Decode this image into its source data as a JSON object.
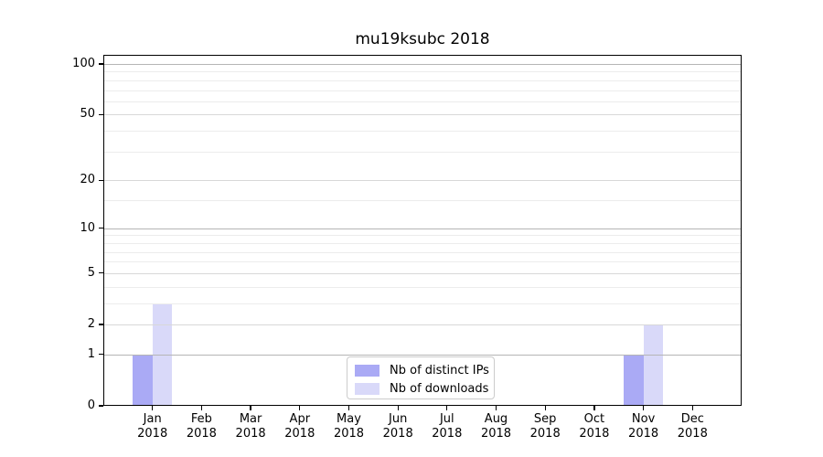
{
  "chart_data": {
    "type": "bar",
    "title": "mu19ksubc 2018",
    "categories": [
      "Jan",
      "Feb",
      "Mar",
      "Apr",
      "May",
      "Jun",
      "Jul",
      "Aug",
      "Sep",
      "Oct",
      "Nov",
      "Dec"
    ],
    "year_label": "2018",
    "series": [
      {
        "name": "Nb of distinct IPs",
        "color": "#aaaaf5",
        "values": [
          1,
          0,
          0,
          0,
          0,
          0,
          0,
          0,
          0,
          0,
          1,
          0
        ]
      },
      {
        "name": "Nb of downloads",
        "color": "#d9d9f9",
        "values": [
          3,
          0,
          0,
          0,
          0,
          0,
          0,
          0,
          0,
          0,
          2,
          0
        ]
      }
    ],
    "xlabel": "",
    "ylabel": "",
    "y_scale": "log10(1+value)",
    "ylim": [
      0,
      113
    ],
    "y_ticks": [
      0,
      1,
      2,
      5,
      10,
      20,
      50,
      100
    ],
    "y_minor_gridlines": [
      3,
      4,
      6,
      7,
      8,
      9,
      15,
      30,
      40,
      60,
      70,
      80,
      90
    ],
    "grid": "on",
    "legend_position": "lower-center"
  }
}
